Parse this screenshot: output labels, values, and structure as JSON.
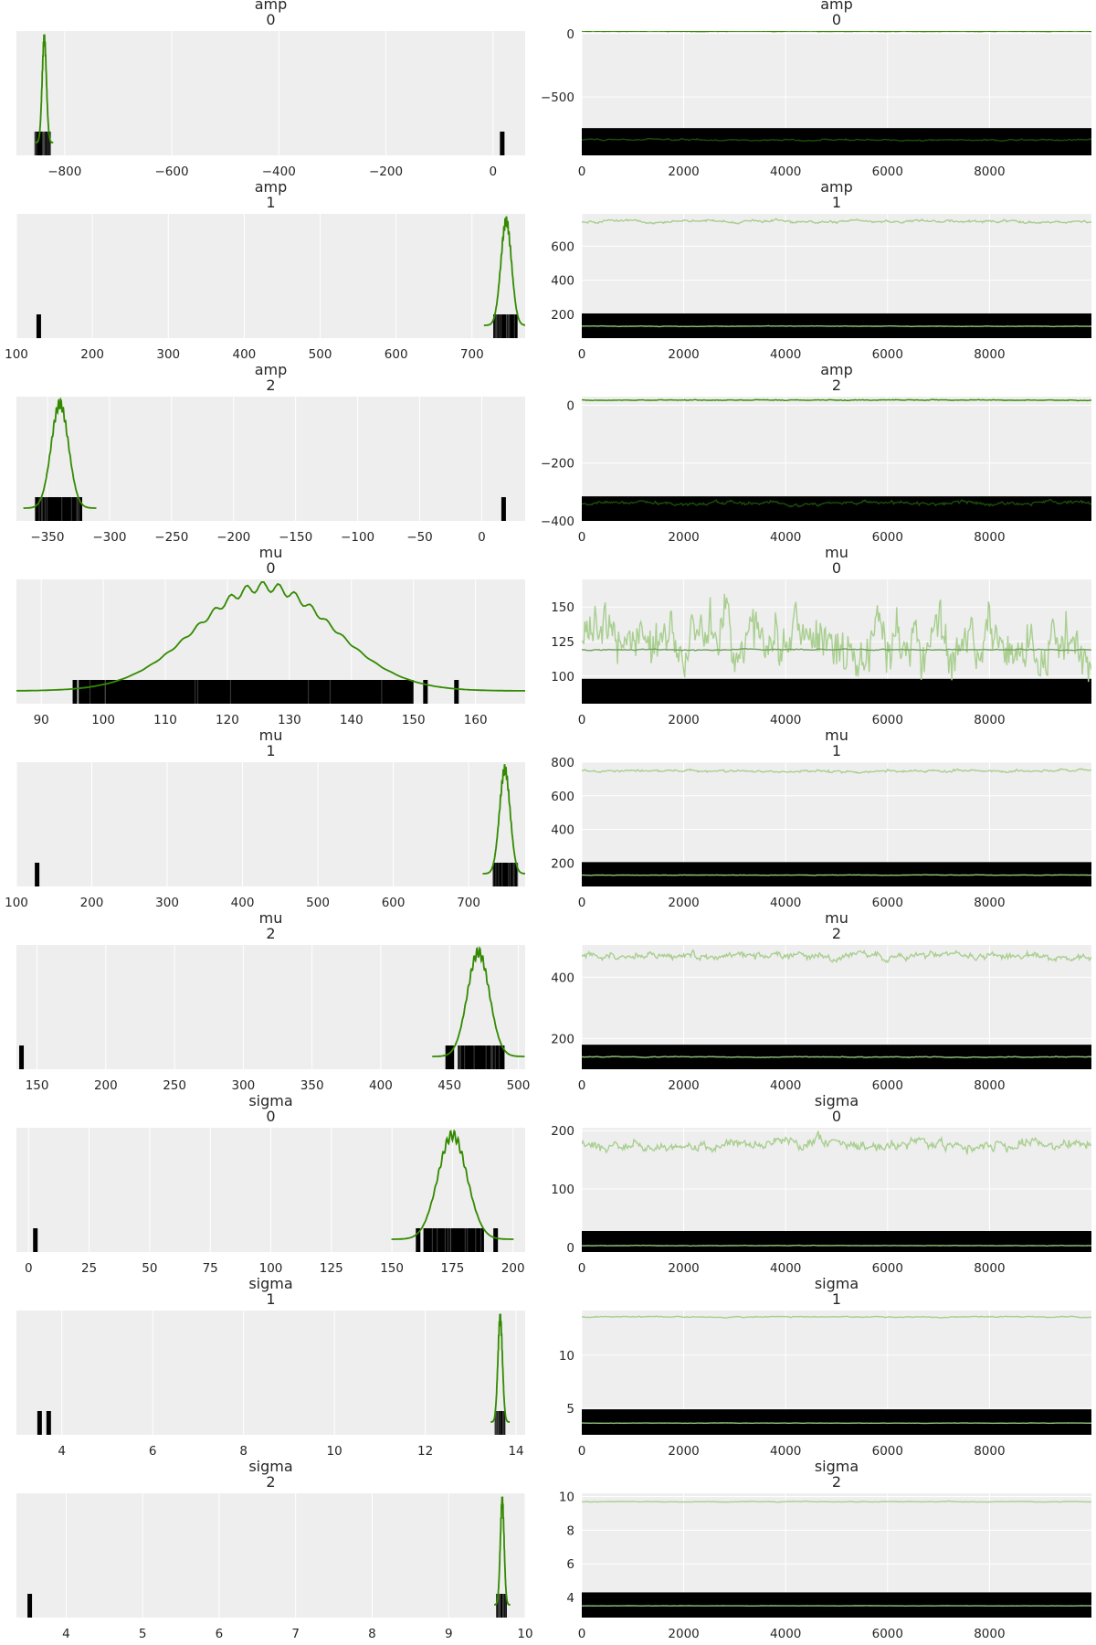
{
  "chart_data": [
    {
      "type": "kde",
      "title_var": "amp",
      "title_idx": "0",
      "xlim": [
        -890,
        60
      ],
      "xticks": [
        -800,
        -600,
        -400,
        -200,
        0
      ],
      "xtick_labels": [
        "−800",
        "−600",
        "−400",
        "−200",
        "0"
      ],
      "kde": {
        "mean": -838,
        "sd": 4
      },
      "rug": [
        {
          "type": "dense",
          "x0": -856,
          "x1": -826
        },
        {
          "type": "bar",
          "x": 18
        }
      ],
      "color": "#338a00"
    },
    {
      "type": "trace",
      "title_var": "amp",
      "title_idx": "0",
      "xlim": [
        0,
        10000
      ],
      "ylim": [
        -960,
        20
      ],
      "xticks": [
        0,
        2000,
        4000,
        6000,
        8000
      ],
      "xtick_labels": [
        "0",
        "2000",
        "4000",
        "6000",
        "8000"
      ],
      "yticks": [
        -500,
        0
      ],
      "ytick_labels": [
        "−500",
        "0"
      ],
      "lines": [
        {
          "level": -838,
          "noise": 5,
          "color": "#1a4d0c"
        },
        {
          "level": 18,
          "noise": 1,
          "color": "#338a00"
        }
      ],
      "block": [
        -960,
        -745
      ]
    },
    {
      "type": "kde",
      "title_var": "amp",
      "title_idx": "1",
      "xlim": [
        100,
        770
      ],
      "xticks": [
        100,
        200,
        300,
        400,
        500,
        600,
        700
      ],
      "xtick_labels": [
        "100",
        "200",
        "300",
        "400",
        "500",
        "600",
        "700"
      ],
      "kde": {
        "mean": 745,
        "sd": 7
      },
      "rug": [
        {
          "type": "dense",
          "x0": 728,
          "x1": 760
        },
        {
          "type": "bar",
          "x": 130
        }
      ],
      "color": "#338a00"
    },
    {
      "type": "trace",
      "title_var": "amp",
      "title_idx": "1",
      "xlim": [
        0,
        10000
      ],
      "ylim": [
        60,
        790
      ],
      "xticks": [
        0,
        2000,
        4000,
        6000,
        8000
      ],
      "xtick_labels": [
        "0",
        "2000",
        "4000",
        "6000",
        "8000"
      ],
      "yticks": [
        200,
        400,
        600
      ],
      "ytick_labels": [
        "200",
        "400",
        "600"
      ],
      "lines": [
        {
          "level": 745,
          "noise": 6,
          "color": "#a9cf90"
        },
        {
          "level": 130,
          "noise": 1,
          "color": "#8fc57a"
        }
      ],
      "block": [
        60,
        205
      ]
    },
    {
      "type": "kde",
      "title_var": "amp",
      "title_idx": "2",
      "xlim": [
        -375,
        35
      ],
      "xticks": [
        -350,
        -300,
        -250,
        -200,
        -150,
        -100,
        -50,
        0
      ],
      "xtick_labels": [
        "−350",
        "−300",
        "−250",
        "−200",
        "−150",
        "−100",
        "−50",
        "0"
      ],
      "kde": {
        "mean": -340,
        "sd": 7
      },
      "rug": [
        {
          "type": "dense",
          "x0": -360,
          "x1": -322
        },
        {
          "type": "bar",
          "x": 18
        }
      ],
      "color": "#338a00"
    },
    {
      "type": "trace",
      "title_var": "amp",
      "title_idx": "2",
      "xlim": [
        0,
        10000
      ],
      "ylim": [
        -400,
        30
      ],
      "xticks": [
        0,
        2000,
        4000,
        6000,
        8000
      ],
      "xtick_labels": [
        "0",
        "2000",
        "4000",
        "6000",
        "8000"
      ],
      "yticks": [
        -400,
        -200,
        0
      ],
      "ytick_labels": [
        "−400",
        "−200",
        "0"
      ],
      "lines": [
        {
          "level": -338,
          "noise": 5,
          "color": "#1a4d0c"
        },
        {
          "level": 18,
          "noise": 1,
          "color": "#338a00"
        }
      ],
      "block": [
        -400,
        -315
      ]
    },
    {
      "type": "kde",
      "title_var": "mu",
      "title_idx": "0",
      "xlim": [
        86,
        168
      ],
      "xticks": [
        90,
        100,
        110,
        120,
        130,
        140,
        150,
        160
      ],
      "xtick_labels": [
        "90",
        "100",
        "110",
        "120",
        "130",
        "140",
        "150",
        "160"
      ],
      "kde": {
        "mean": 126,
        "sd": 11
      },
      "rug": [
        {
          "type": "dense",
          "x0": 96,
          "x1": 150
        },
        {
          "type": "bar",
          "x": 95.5
        },
        {
          "type": "bar",
          "x": 152
        },
        {
          "type": "bar",
          "x": 157
        }
      ],
      "color": "#338a00"
    },
    {
      "type": "trace",
      "title_var": "mu",
      "title_idx": "0",
      "xlim": [
        0,
        10000
      ],
      "ylim": [
        80,
        170
      ],
      "xticks": [
        0,
        2000,
        4000,
        6000,
        8000
      ],
      "xtick_labels": [
        "0",
        "2000",
        "4000",
        "6000",
        "8000"
      ],
      "yticks": [
        100,
        125,
        150
      ],
      "ytick_labels": [
        "100",
        "125",
        "150"
      ],
      "lines": [
        {
          "level": 125,
          "noise": 16,
          "color": "#a9cf90"
        },
        {
          "level": 119,
          "noise": 0.3,
          "color": "#6f9f5a"
        }
      ],
      "block": [
        80,
        98
      ]
    },
    {
      "type": "kde",
      "title_var": "mu",
      "title_idx": "1",
      "xlim": [
        100,
        775
      ],
      "xticks": [
        100,
        200,
        300,
        400,
        500,
        600,
        700
      ],
      "xtick_labels": [
        "100",
        "200",
        "300",
        "400",
        "500",
        "600",
        "700"
      ],
      "kde": {
        "mean": 748,
        "sd": 7
      },
      "rug": [
        {
          "type": "dense",
          "x0": 732,
          "x1": 765
        },
        {
          "type": "bar",
          "x": 128
        }
      ],
      "color": "#338a00"
    },
    {
      "type": "trace",
      "title_var": "mu",
      "title_idx": "1",
      "xlim": [
        0,
        10000
      ],
      "ylim": [
        60,
        800
      ],
      "xticks": [
        0,
        2000,
        4000,
        6000,
        8000
      ],
      "xtick_labels": [
        "0",
        "2000",
        "4000",
        "6000",
        "8000"
      ],
      "yticks": [
        200,
        400,
        600,
        800
      ],
      "ytick_labels": [
        "200",
        "400",
        "600",
        "800"
      ],
      "lines": [
        {
          "level": 748,
          "noise": 6,
          "color": "#a9cf90"
        },
        {
          "level": 128,
          "noise": 1,
          "color": "#8fc57a"
        }
      ],
      "block": [
        60,
        205
      ]
    },
    {
      "type": "kde",
      "title_var": "mu",
      "title_idx": "2",
      "xlim": [
        135,
        505
      ],
      "xticks": [
        150,
        200,
        250,
        300,
        350,
        400,
        450,
        500
      ],
      "xtick_labels": [
        "150",
        "200",
        "250",
        "300",
        "350",
        "400",
        "450",
        "500"
      ],
      "kde": {
        "mean": 471,
        "sd": 8
      },
      "rug": [
        {
          "type": "dense",
          "x0": 456,
          "x1": 490
        },
        {
          "type": "bar",
          "x": 139
        },
        {
          "type": "bar",
          "x": 449
        },
        {
          "type": "bar",
          "x": 452
        }
      ],
      "color": "#338a00"
    },
    {
      "type": "trace",
      "title_var": "mu",
      "title_idx": "2",
      "xlim": [
        0,
        10000
      ],
      "ylim": [
        100,
        505
      ],
      "xticks": [
        0,
        2000,
        4000,
        6000,
        8000
      ],
      "xtick_labels": [
        "0",
        "2000",
        "4000",
        "6000",
        "8000"
      ],
      "yticks": [
        200,
        400
      ],
      "ytick_labels": [
        "200",
        "400"
      ],
      "lines": [
        {
          "level": 470,
          "noise": 9,
          "color": "#a9cf90"
        },
        {
          "level": 140,
          "noise": 1,
          "color": "#8fc57a"
        }
      ],
      "block": [
        100,
        180
      ]
    },
    {
      "type": "kde",
      "title_var": "sigma",
      "title_idx": "0",
      "xlim": [
        -5,
        205
      ],
      "xticks": [
        0,
        25,
        50,
        75,
        100,
        125,
        150,
        175,
        200
      ],
      "xtick_labels": [
        "0",
        "25",
        "50",
        "75",
        "100",
        "125",
        "150",
        "175",
        "200"
      ],
      "kde": {
        "mean": 175,
        "sd": 6
      },
      "rug": [
        {
          "type": "dense",
          "x0": 163,
          "x1": 188
        },
        {
          "type": "bar",
          "x": 3
        },
        {
          "type": "bar",
          "x": 161
        },
        {
          "type": "bar",
          "x": 193
        }
      ],
      "color": "#338a00"
    },
    {
      "type": "trace",
      "title_var": "sigma",
      "title_idx": "0",
      "xlim": [
        0,
        10000
      ],
      "ylim": [
        -8,
        205
      ],
      "xticks": [
        0,
        2000,
        4000,
        6000,
        8000
      ],
      "xtick_labels": [
        "0",
        "2000",
        "4000",
        "6000",
        "8000"
      ],
      "yticks": [
        0,
        100,
        200
      ],
      "ytick_labels": [
        "0",
        "100",
        "200"
      ],
      "lines": [
        {
          "level": 175,
          "noise": 7,
          "color": "#a9cf90"
        },
        {
          "level": 3,
          "noise": 0.3,
          "color": "#8fc57a"
        }
      ],
      "block": [
        -8,
        28
      ]
    },
    {
      "type": "kde",
      "title_var": "sigma",
      "title_idx": "1",
      "xlim": [
        3.0,
        14.2
      ],
      "xticks": [
        4,
        6,
        8,
        10,
        12,
        14
      ],
      "xtick_labels": [
        "4",
        "6",
        "8",
        "10",
        "12",
        "14"
      ],
      "kde": {
        "mean": 13.65,
        "sd": 0.05
      },
      "rug": [
        {
          "type": "dense",
          "x0": 13.53,
          "x1": 13.76
        },
        {
          "type": "bar",
          "x": 3.52
        },
        {
          "type": "bar",
          "x": 3.72
        }
      ],
      "color": "#338a00"
    },
    {
      "type": "trace",
      "title_var": "sigma",
      "title_idx": "1",
      "xlim": [
        0,
        10000
      ],
      "ylim": [
        2.5,
        14.2
      ],
      "xticks": [
        0,
        2000,
        4000,
        6000,
        8000
      ],
      "xtick_labels": [
        "0",
        "2000",
        "4000",
        "6000",
        "8000"
      ],
      "yticks": [
        5,
        10
      ],
      "ytick_labels": [
        "5",
        "10"
      ],
      "lines": [
        {
          "level": 13.6,
          "noise": 0.04,
          "color": "#a9cf90"
        },
        {
          "level": 3.6,
          "noise": 0.01,
          "color": "#8fc57a"
        }
      ],
      "block": [
        2.5,
        4.9
      ]
    },
    {
      "type": "kde",
      "title_var": "sigma",
      "title_idx": "2",
      "xlim": [
        3.35,
        10.0
      ],
      "xticks": [
        4,
        5,
        6,
        7,
        8,
        9,
        10
      ],
      "xtick_labels": [
        "4",
        "5",
        "6",
        "7",
        "8",
        "9",
        "10"
      ],
      "kde": {
        "mean": 9.7,
        "sd": 0.025
      },
      "rug": [
        {
          "type": "dense",
          "x0": 9.62,
          "x1": 9.76
        },
        {
          "type": "bar",
          "x": 3.53
        }
      ],
      "color": "#338a00"
    },
    {
      "type": "trace",
      "title_var": "sigma",
      "title_idx": "2",
      "xlim": [
        0,
        10000
      ],
      "ylim": [
        2.8,
        10.2
      ],
      "xticks": [
        0,
        2000,
        4000,
        6000,
        8000
      ],
      "xtick_labels": [
        "0",
        "2000",
        "4000",
        "6000",
        "8000"
      ],
      "yticks": [
        4,
        6,
        8,
        10
      ],
      "ytick_labels": [
        "4",
        "6",
        "8",
        "10"
      ],
      "lines": [
        {
          "level": 9.7,
          "noise": 0.015,
          "color": "#a9cf90"
        },
        {
          "level": 3.5,
          "noise": 0.005,
          "color": "#8fc57a"
        }
      ],
      "block": [
        2.8,
        4.3
      ]
    }
  ]
}
